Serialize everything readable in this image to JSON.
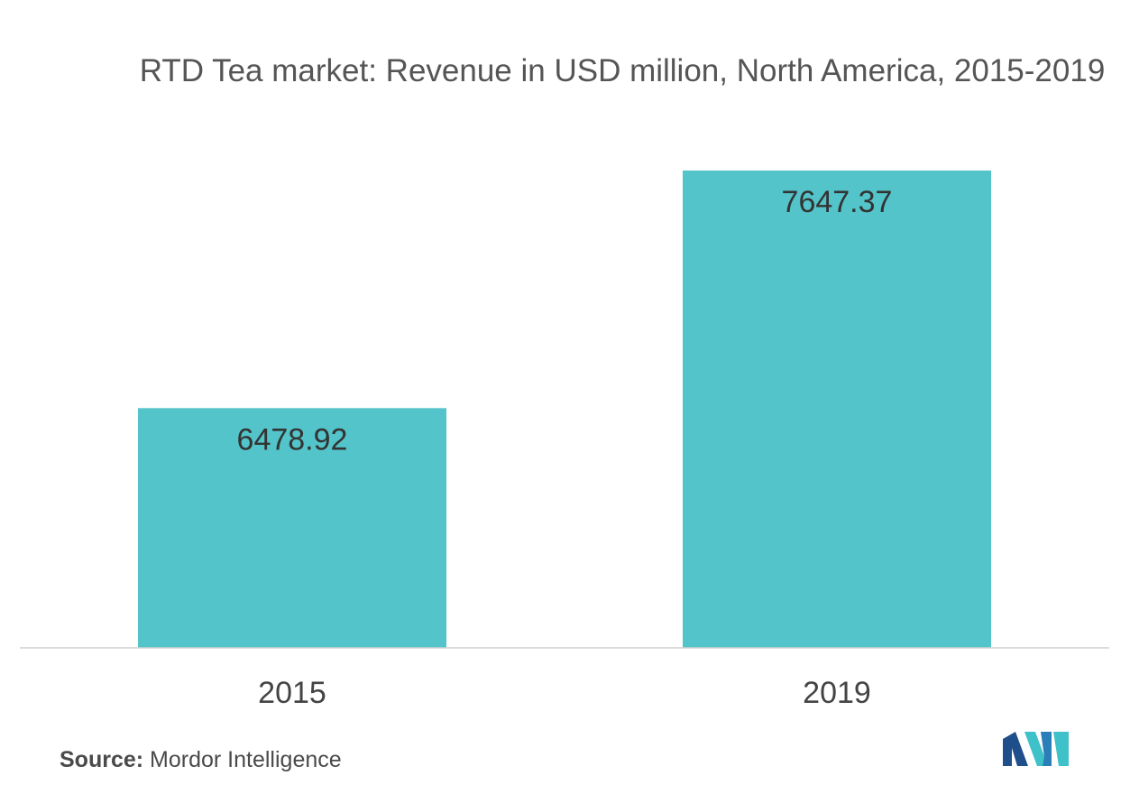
{
  "chart_data": {
    "type": "bar",
    "title": "RTD Tea market: Revenue in USD million, North America, 2015-2019",
    "categories": [
      "2015",
      "2019"
    ],
    "values": [
      6478.92,
      7647.37
    ],
    "data_labels": [
      "6478.92",
      "7647.37"
    ],
    "xlabel": "",
    "ylabel": "",
    "grid": false,
    "legend": "none",
    "bar_color": "#53c4c9"
  },
  "footer": {
    "source_label": "Source:",
    "source_text": "Mordor Intelligence",
    "logo_icon": "mordor-intelligence-logo-icon"
  }
}
